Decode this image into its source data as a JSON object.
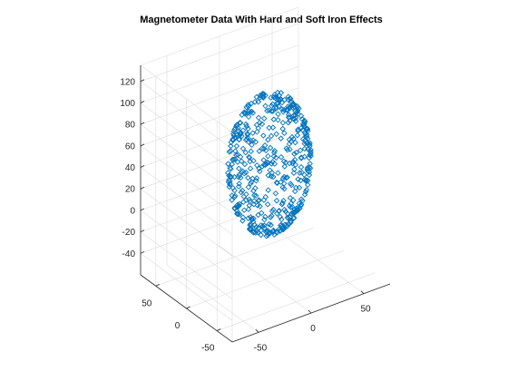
{
  "figure": {
    "background": "#ffffff"
  },
  "chart_data": {
    "type": "scatter",
    "dimensions": 3,
    "title": "Magnetometer Data With Hard and Soft Iron Effects",
    "xlabel": "",
    "ylabel": "",
    "zlabel": "",
    "marker": "diamond",
    "marker_color": "#0072bd",
    "grid": true,
    "x_ticks": [
      "-50",
      "0",
      "50"
    ],
    "y_ticks": [
      "-50",
      "0",
      "50"
    ],
    "z_ticks": [
      "-40",
      "-20",
      "0",
      "20",
      "40",
      "60",
      "80",
      "100",
      "120"
    ],
    "xlim": [
      -75,
      75
    ],
    "ylim": [
      -75,
      75
    ],
    "zlim": [
      -60,
      135
    ],
    "shape": "tilted ellipsoid point cloud",
    "center": [
      5,
      2,
      45
    ],
    "point_count": 500
  }
}
